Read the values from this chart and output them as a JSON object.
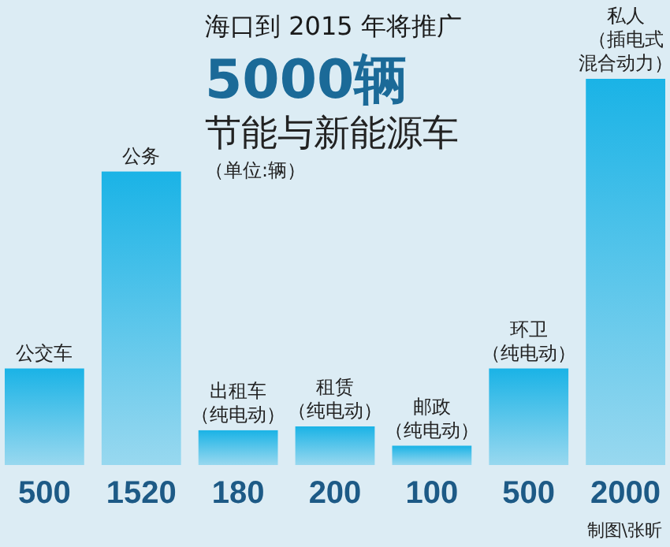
{
  "chart_data": {
    "type": "bar",
    "title": "海口到 2015 年将推广",
    "subtitle": "5000辆",
    "categories": [
      "公交车",
      "公务",
      "出租车（纯电动）",
      "租赁（纯电动）",
      "邮政（纯电动）",
      "环卫（纯电动）",
      "私人（插电式混合动力）"
    ],
    "values": [
      500,
      1520,
      180,
      200,
      100,
      500,
      2000
    ],
    "color": "#1ab3e6",
    "data_labels": true,
    "annotations": [
      "节能与新能源车",
      "（单位:辆）",
      "制图\\张昕"
    ]
  }
}
